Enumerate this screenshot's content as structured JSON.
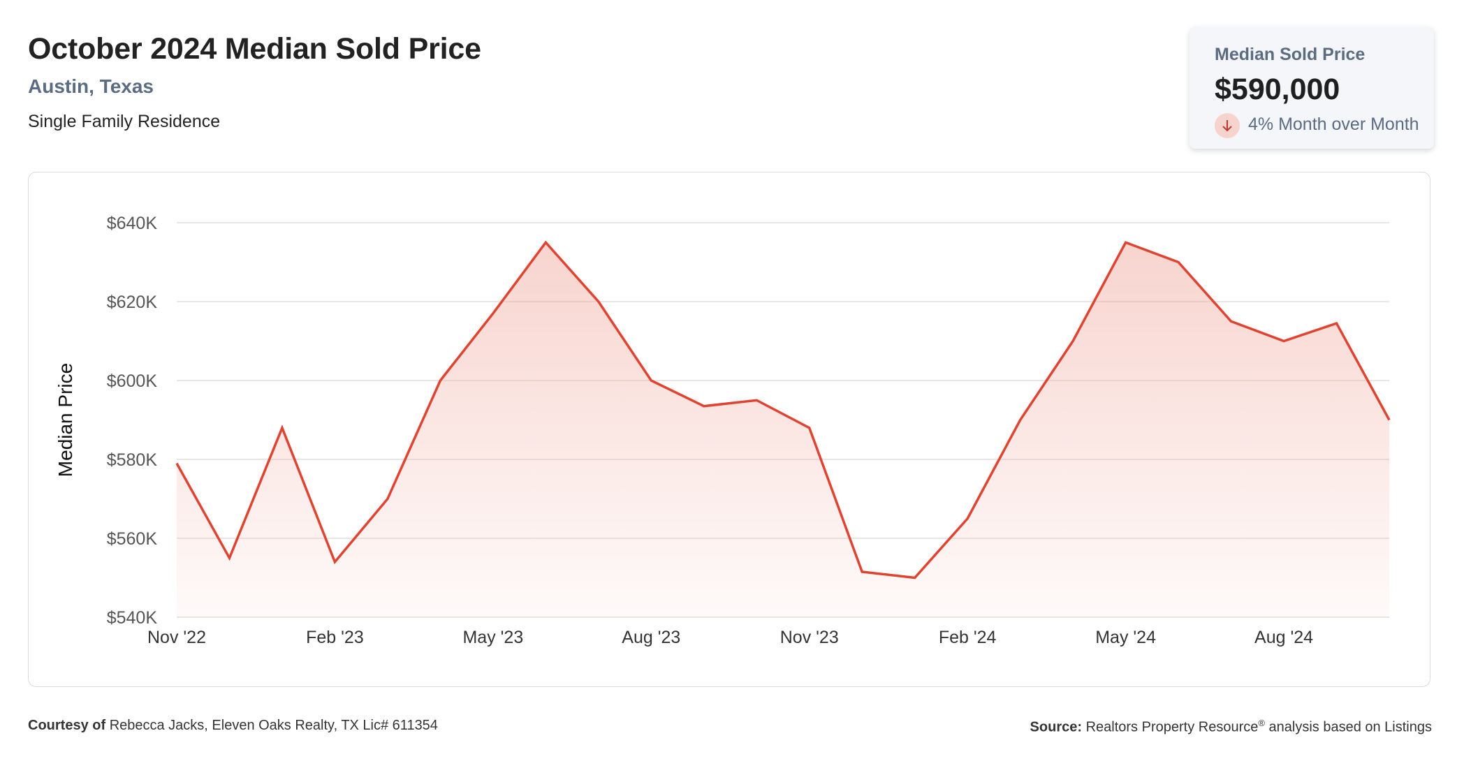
{
  "header": {
    "title": "October 2024 Median Sold Price",
    "location": "Austin, Texas",
    "property_type": "Single Family Residence"
  },
  "stat_card": {
    "label": "Median Sold Price",
    "value": "$590,000",
    "change_text": "4% Month over Month",
    "change_direction": "down",
    "change_icon": "arrow-down-icon"
  },
  "colors": {
    "line": "#e0432f",
    "fill": "#f2b1a7",
    "grid": "#dedede",
    "axis_text": "#555555"
  },
  "chart_data": {
    "type": "area",
    "ylabel": "Median Price",
    "xlabel": "",
    "ylim": [
      540000,
      640000
    ],
    "y_ticks": [
      540000,
      560000,
      580000,
      600000,
      620000,
      640000
    ],
    "y_tick_labels": [
      "$540K",
      "$560K",
      "$580K",
      "$600K",
      "$620K",
      "$640K"
    ],
    "x_tick_labels": [
      {
        "index": 0,
        "label": "Nov '22"
      },
      {
        "index": 3,
        "label": "Feb '23"
      },
      {
        "index": 6,
        "label": "May '23"
      },
      {
        "index": 9,
        "label": "Aug '23"
      },
      {
        "index": 12,
        "label": "Nov '23"
      },
      {
        "index": 15,
        "label": "Feb '24"
      },
      {
        "index": 18,
        "label": "May '24"
      },
      {
        "index": 21,
        "label": "Aug '24"
      }
    ],
    "grid": true,
    "legend": "none",
    "series": [
      {
        "x": [
          "Nov '22",
          "Dec '22",
          "Jan '23",
          "Feb '23",
          "Mar '23",
          "Apr '23",
          "May '23",
          "Jun '23",
          "Jul '23",
          "Aug '23",
          "Sep '23",
          "Oct '23",
          "Nov '23",
          "Dec '23",
          "Jan '24",
          "Feb '24",
          "Mar '24",
          "Apr '24",
          "May '24",
          "Jun '24",
          "Jul '24",
          "Aug '24",
          "Sep '24",
          "Oct '24"
        ],
        "values": [
          579000,
          555000,
          588000,
          554000,
          570000,
          600000,
          617000,
          635000,
          620000,
          600000,
          593500,
          595000,
          588000,
          551500,
          550000,
          565000,
          590000,
          610000,
          635000,
          630000,
          615000,
          610000,
          614500,
          590000
        ]
      }
    ]
  },
  "footer": {
    "courtesy_label": "Courtesy of",
    "courtesy_text": "Rebecca Jacks, Eleven Oaks Realty, TX Lic# 611354",
    "source_label": "Source:",
    "source_text": "Realtors Property Resource",
    "source_sup": "®",
    "source_suffix": "analysis based on Listings"
  }
}
